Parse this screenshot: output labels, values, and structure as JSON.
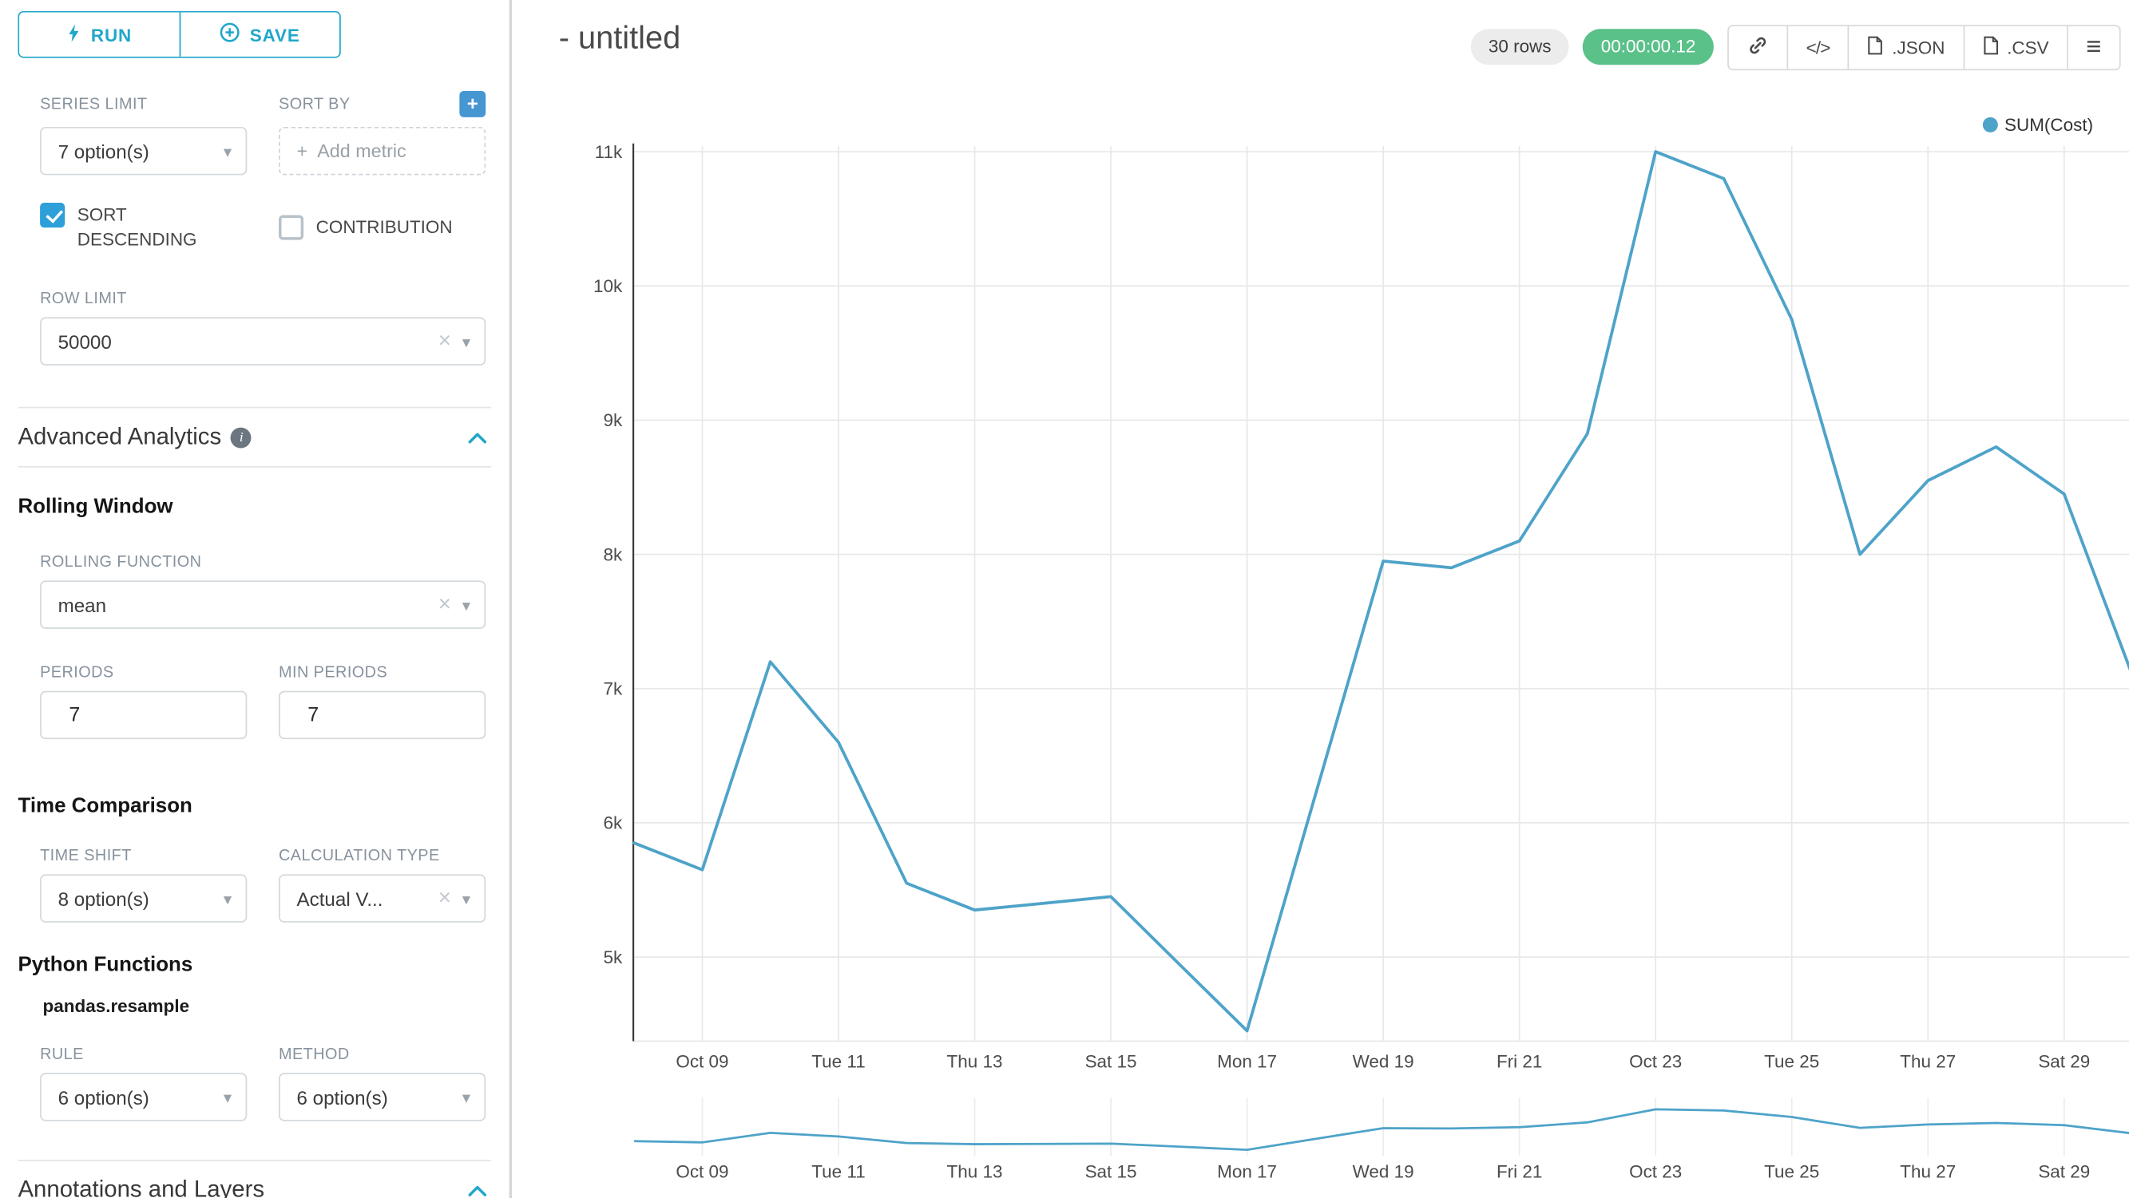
{
  "theme": {
    "accent": "#20A7C9",
    "checkbox": "#2D9FD9",
    "plusbtn": "#4596D1",
    "success": "#5AC189",
    "line": "#4EA3C9"
  },
  "glyphs": {
    "caret": "▾",
    "clear": "×",
    "plus": "+",
    "menu": "≡"
  },
  "panel": {
    "run_label": "RUN",
    "save_label": "SAVE",
    "series_limit": {
      "label": "SERIES LIMIT",
      "value": "7 option(s)"
    },
    "sort_by": {
      "label": "SORT BY",
      "placeholder": "Add metric"
    },
    "sort_descending": {
      "label": "SORT DESCENDING",
      "checked": true
    },
    "contribution": {
      "label": "CONTRIBUTION",
      "checked": false
    },
    "row_limit": {
      "label": "ROW LIMIT",
      "value": "50000"
    },
    "advanced_analytics": {
      "title": "Advanced Analytics"
    },
    "rolling_window_title": "Rolling Window",
    "rolling_function": {
      "label": "ROLLING FUNCTION",
      "value": "mean"
    },
    "periods": {
      "label": "PERIODS",
      "value": "7"
    },
    "min_periods": {
      "label": "MIN PERIODS",
      "value": "7"
    },
    "time_comparison_title": "Time Comparison",
    "time_shift": {
      "label": "TIME SHIFT",
      "value": "8 option(s)"
    },
    "calculation_type": {
      "label": "CALCULATION TYPE",
      "value": "Actual V..."
    },
    "python_functions_title": "Python Functions",
    "python_functions_sub": "pandas.resample",
    "rule": {
      "label": "RULE",
      "value": "6 option(s)"
    },
    "method": {
      "label": "METHOD",
      "value": "6 option(s)"
    },
    "annotations_title": "Annotations and Layers"
  },
  "header": {
    "title": "- untitled",
    "rows_badge": "30 rows",
    "duration_badge": "00:00:00.12",
    "code_glyph": "</>",
    "json_label": ".JSON",
    "csv_label": ".CSV"
  },
  "chart_data": {
    "type": "line",
    "title": "- untitled",
    "xlabel": "",
    "ylabel": "",
    "grid": true,
    "legend_position": "top-right",
    "ylim": [
      4400,
      11150
    ],
    "x": [
      "Oct 08",
      "Oct 09",
      "Oct 10",
      "Oct 11",
      "Oct 12",
      "Oct 13",
      "Oct 14",
      "Oct 15",
      "Oct 16",
      "Oct 17",
      "Oct 18",
      "Oct 19",
      "Oct 20",
      "Oct 21",
      "Oct 22",
      "Oct 23",
      "Oct 24",
      "Oct 25",
      "Oct 26",
      "Oct 27",
      "Oct 28",
      "Oct 29",
      "Oct 30"
    ],
    "series": [
      {
        "name": "SUM(Cost)",
        "color": "#4EA3C9",
        "values": [
          5850,
          5650,
          7200,
          6600,
          5550,
          5350,
          5400,
          5450,
          4950,
          4450,
          6200,
          7950,
          7900,
          8100,
          8900,
          11000,
          10800,
          9750,
          8000,
          8550,
          8800,
          8450,
          7100
        ]
      }
    ],
    "x_tick_indices": [
      1,
      3,
      5,
      7,
      9,
      11,
      13,
      15,
      17,
      19,
      21
    ],
    "x_tick_labels": [
      "Oct 09",
      "Tue 11",
      "Thu 13",
      "Sat 15",
      "Mon 17",
      "Wed 19",
      "Fri 21",
      "Oct 23",
      "Tue 25",
      "Thu 27",
      "Sat 29"
    ],
    "y_ticks": [
      {
        "label": "5k",
        "value": 5000
      },
      {
        "label": "6k",
        "value": 6000
      },
      {
        "label": "7k",
        "value": 7000
      },
      {
        "label": "8k",
        "value": 8000
      },
      {
        "label": "9k",
        "value": 9000
      },
      {
        "label": "10k",
        "value": 10000
      },
      {
        "label": "11k",
        "value": 11000
      }
    ]
  }
}
